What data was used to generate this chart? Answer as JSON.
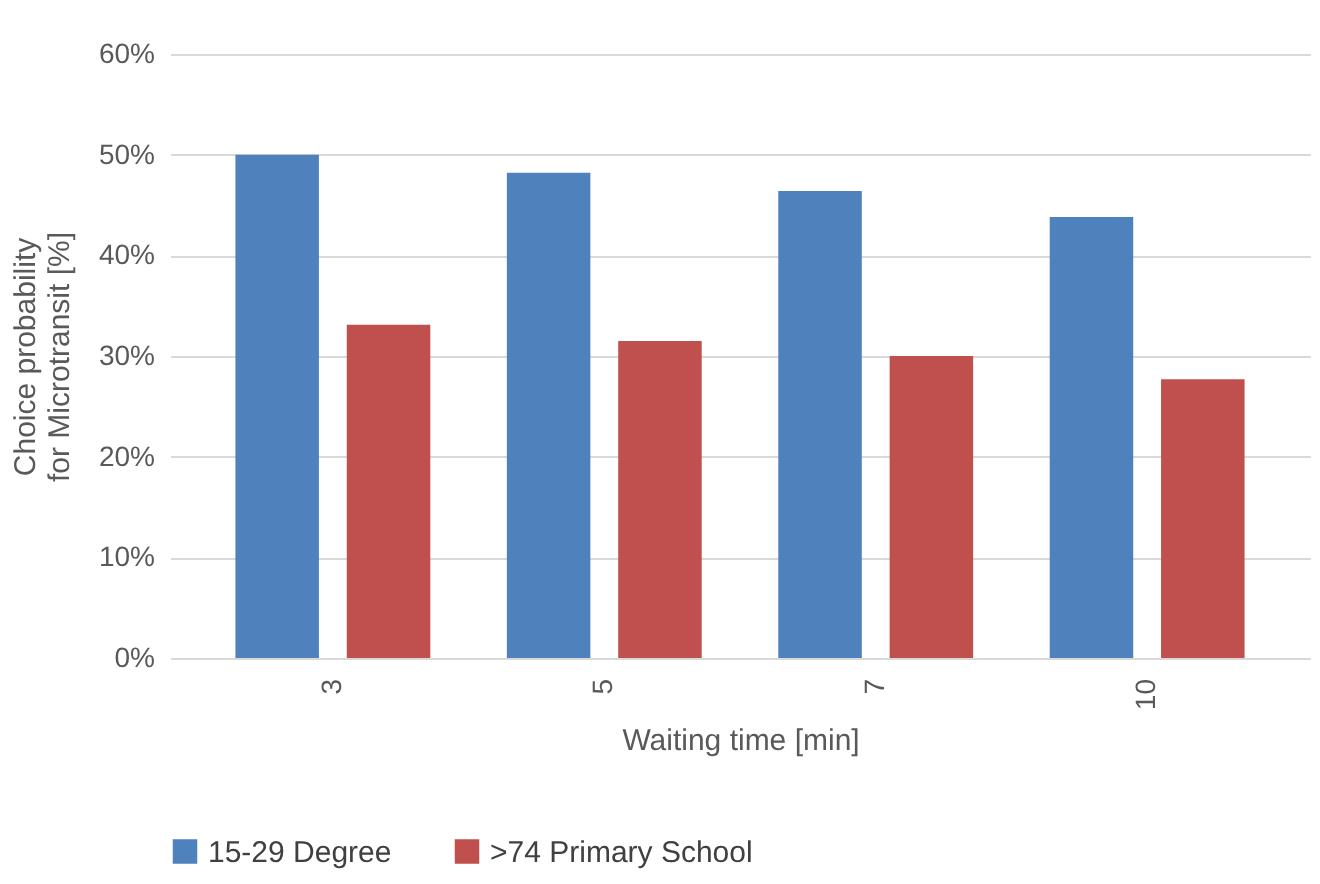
{
  "chart_data": {
    "type": "bar",
    "xlabel": "Waiting time [min]",
    "ylabel": "Choice probability for Microtransit [%]",
    "categories": [
      "3",
      "5",
      "7",
      "10"
    ],
    "series": [
      {
        "name": "15-29 Degree",
        "color": "#4f81bd",
        "values": [
          50.0,
          48.2,
          46.4,
          43.8
        ]
      },
      {
        "name": ">74 Primary School",
        "color": "#c0504d",
        "values": [
          33.1,
          31.5,
          30.0,
          27.7
        ]
      }
    ],
    "ylim": [
      0,
      60
    ],
    "yticks": [
      {
        "value": 0,
        "label": "0%"
      },
      {
        "value": 10,
        "label": "10%"
      },
      {
        "value": 20,
        "label": "20%"
      },
      {
        "value": 30,
        "label": "30%"
      },
      {
        "value": 40,
        "label": "40%"
      },
      {
        "value": 50,
        "label": "50%"
      },
      {
        "value": 60,
        "label": "60%"
      }
    ],
    "grid": "y",
    "legend": "bottom"
  }
}
